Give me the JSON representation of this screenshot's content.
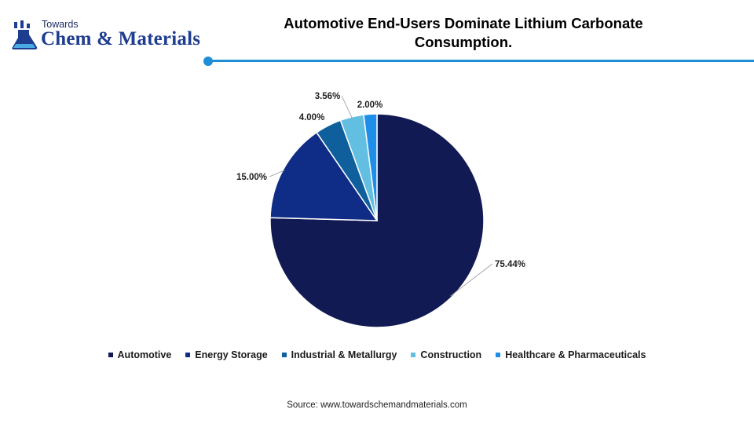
{
  "logo": {
    "line1": "Towards",
    "line2": "Chem & Materials"
  },
  "title_line1": "Automotive End-Users Dominate Lithium Carbonate",
  "title_line2": "Consumption.",
  "source": "Source: www.towardschemandmaterials.com",
  "chart_data": {
    "type": "pie",
    "title": "Automotive End-Users Dominate Lithium Carbonate Consumption.",
    "legend_position": "bottom",
    "slices": [
      {
        "label": "Automotive",
        "value": 75.44,
        "display": "75.44%",
        "color": "#111a52"
      },
      {
        "label": "Energy Storage",
        "value": 15.0,
        "display": "15.00%",
        "color": "#0f2d86"
      },
      {
        "label": "Industrial & Metallurgy",
        "value": 4.0,
        "display": "4.00%",
        "color": "#0e5f9c"
      },
      {
        "label": "Construction",
        "value": 3.56,
        "display": "3.56%",
        "color": "#63bfe1"
      },
      {
        "label": "Healthcare & Pharmaceuticals",
        "value": 2.0,
        "display": "2.00%",
        "color": "#1f8ee8"
      }
    ]
  }
}
